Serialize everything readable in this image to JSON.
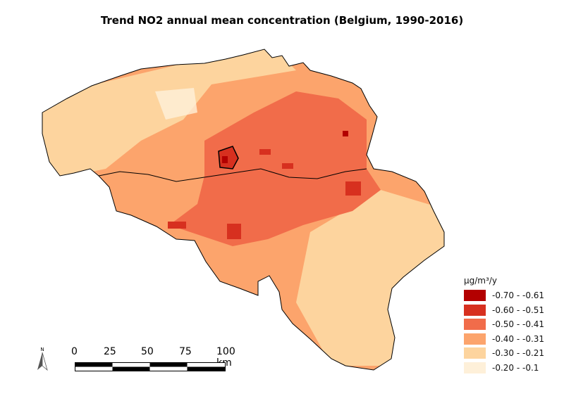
{
  "title": "Trend NO2 annual mean concentration (Belgium, 1990-2016)",
  "legend": {
    "unit": "µg/m³/y",
    "classes": [
      {
        "label": "-0.70 - -0.61",
        "color": "#b30000"
      },
      {
        "label": "-0.60 - -0.51",
        "color": "#d7301f"
      },
      {
        "label": "-0.50 - -0.41",
        "color": "#f16c4a"
      },
      {
        "label": "-0.40 - -0.31",
        "color": "#fca46c"
      },
      {
        "label": "-0.30 - -0.21",
        "color": "#fdd49e"
      },
      {
        "label": "-0.20 - -0.1",
        "color": "#fef0d9"
      }
    ]
  },
  "scalebar": {
    "ticks": [
      "0",
      "25",
      "50",
      "75",
      "100 km"
    ]
  },
  "north_arrow": {
    "label": "N"
  }
}
